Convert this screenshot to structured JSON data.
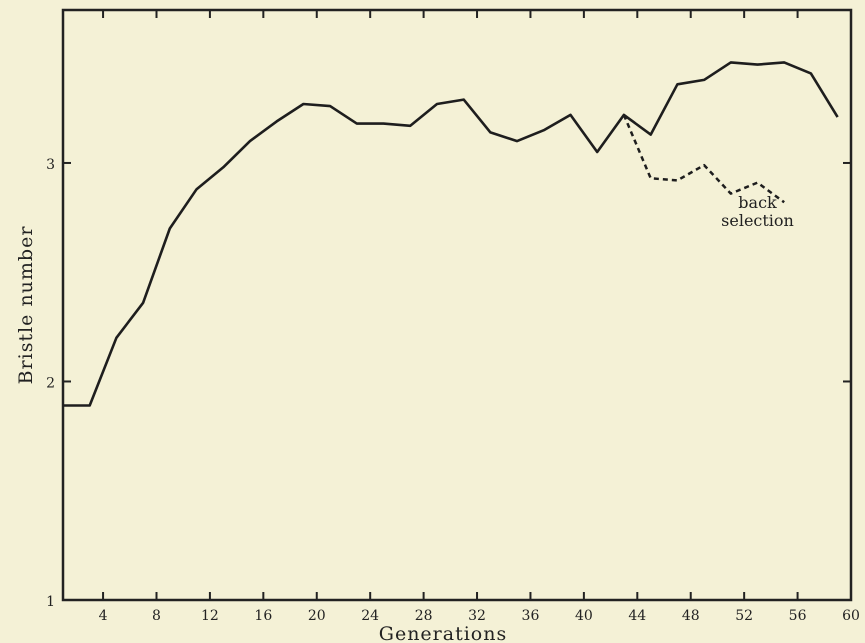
{
  "chart_data": {
    "type": "line",
    "xlabel": "Generations",
    "ylabel": "Bristle number",
    "xlim": [
      1,
      60
    ],
    "ylim": [
      1,
      3.7
    ],
    "xticks": [
      4,
      8,
      12,
      16,
      20,
      24,
      28,
      32,
      36,
      40,
      44,
      48,
      52,
      56,
      60
    ],
    "yticks": [
      1,
      2,
      3
    ],
    "grid": false,
    "series": [
      {
        "style": "solid",
        "x": [
          1,
          3,
          5,
          7,
          9,
          11,
          13,
          15,
          17,
          19,
          21,
          23,
          25,
          27,
          29,
          31,
          33,
          35,
          37,
          39,
          41,
          43,
          45,
          47,
          49,
          51,
          53,
          55,
          57,
          59
        ],
        "y": [
          1.89,
          1.89,
          2.2,
          2.36,
          2.7,
          2.88,
          2.98,
          3.1,
          3.19,
          3.27,
          3.26,
          3.18,
          3.18,
          3.17,
          3.27,
          3.29,
          3.14,
          3.1,
          3.15,
          3.22,
          3.05,
          3.22,
          3.13,
          3.36,
          3.38,
          3.46,
          3.45,
          3.46,
          3.41,
          3.21
        ]
      },
      {
        "name": "back selection",
        "style": "dashed",
        "x": [
          43,
          45,
          47,
          49,
          51,
          53,
          55
        ],
        "y": [
          3.22,
          2.93,
          2.92,
          2.99,
          2.86,
          2.91,
          2.82
        ]
      }
    ],
    "annotation": {
      "line1": "back",
      "line2": "selection",
      "at_x": 53,
      "at_y": 2.72
    }
  }
}
